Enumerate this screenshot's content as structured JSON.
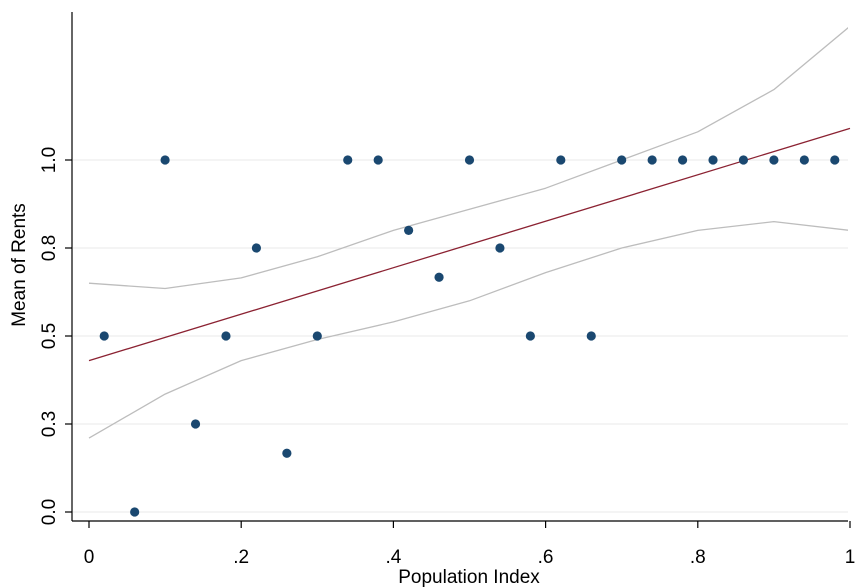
{
  "chart_data": {
    "type": "scatter",
    "title": "",
    "xlabel": "Population Index",
    "ylabel": "Mean of Rents",
    "xlim": [
      0,
      1
    ],
    "ylim": [
      0,
      1.25
    ],
    "grid": true,
    "legend": "none",
    "x_ticks": [
      {
        "value": 0,
        "label": "0"
      },
      {
        "value": 0.2,
        "label": ".2"
      },
      {
        "value": 0.4,
        "label": ".4"
      },
      {
        "value": 0.6,
        "label": ".6"
      },
      {
        "value": 0.8,
        "label": ".8"
      },
      {
        "value": 1,
        "label": "1"
      }
    ],
    "y_ticks": [
      {
        "value": 0,
        "label": "0.0"
      },
      {
        "value": 0.25,
        "label": "0.3"
      },
      {
        "value": 0.5,
        "label": "0.5"
      },
      {
        "value": 0.75,
        "label": "0.8"
      },
      {
        "value": 1.0,
        "label": "1.0"
      }
    ],
    "points": [
      {
        "x": 0.02,
        "y": 0.5
      },
      {
        "x": 0.06,
        "y": 0.0
      },
      {
        "x": 0.1,
        "y": 1.0
      },
      {
        "x": 0.14,
        "y": 0.25
      },
      {
        "x": 0.18,
        "y": 0.5
      },
      {
        "x": 0.22,
        "y": 0.75
      },
      {
        "x": 0.26,
        "y": 0.167
      },
      {
        "x": 0.3,
        "y": 0.5
      },
      {
        "x": 0.34,
        "y": 1.0
      },
      {
        "x": 0.38,
        "y": 1.0
      },
      {
        "x": 0.42,
        "y": 0.8
      },
      {
        "x": 0.46,
        "y": 0.667
      },
      {
        "x": 0.5,
        "y": 1.0
      },
      {
        "x": 0.54,
        "y": 0.75
      },
      {
        "x": 0.58,
        "y": 0.5
      },
      {
        "x": 0.62,
        "y": 1.0
      },
      {
        "x": 0.66,
        "y": 0.5
      },
      {
        "x": 0.7,
        "y": 1.0
      },
      {
        "x": 0.74,
        "y": 1.0
      },
      {
        "x": 0.78,
        "y": 1.0
      },
      {
        "x": 0.82,
        "y": 1.0
      },
      {
        "x": 0.86,
        "y": 1.0
      },
      {
        "x": 0.9,
        "y": 1.0
      },
      {
        "x": 0.94,
        "y": 1.0
      },
      {
        "x": 0.98,
        "y": 1.0
      }
    ],
    "fit_line": [
      {
        "x": 0.0,
        "y": 0.43
      },
      {
        "x": 1.0,
        "y": 1.09
      }
    ],
    "ci_upper": [
      {
        "x": 0.0,
        "y": 0.65
      },
      {
        "x": 0.1,
        "y": 0.635
      },
      {
        "x": 0.2,
        "y": 0.665
      },
      {
        "x": 0.3,
        "y": 0.725
      },
      {
        "x": 0.4,
        "y": 0.8
      },
      {
        "x": 0.5,
        "y": 0.86
      },
      {
        "x": 0.6,
        "y": 0.92
      },
      {
        "x": 0.7,
        "y": 1.0
      },
      {
        "x": 0.8,
        "y": 1.08
      },
      {
        "x": 0.9,
        "y": 1.2
      },
      {
        "x": 1.0,
        "y": 1.38
      }
    ],
    "ci_lower": [
      {
        "x": 0.0,
        "y": 0.21
      },
      {
        "x": 0.1,
        "y": 0.335
      },
      {
        "x": 0.2,
        "y": 0.43
      },
      {
        "x": 0.3,
        "y": 0.49
      },
      {
        "x": 0.4,
        "y": 0.54
      },
      {
        "x": 0.5,
        "y": 0.6
      },
      {
        "x": 0.6,
        "y": 0.68
      },
      {
        "x": 0.7,
        "y": 0.75
      },
      {
        "x": 0.8,
        "y": 0.8
      },
      {
        "x": 0.9,
        "y": 0.825
      },
      {
        "x": 1.0,
        "y": 0.8
      }
    ],
    "colors": {
      "points": "#1a4870",
      "fit": "#8b2232",
      "ci": "#bdbdbd",
      "grid": "#eaeaea",
      "axis": "#000000"
    }
  }
}
